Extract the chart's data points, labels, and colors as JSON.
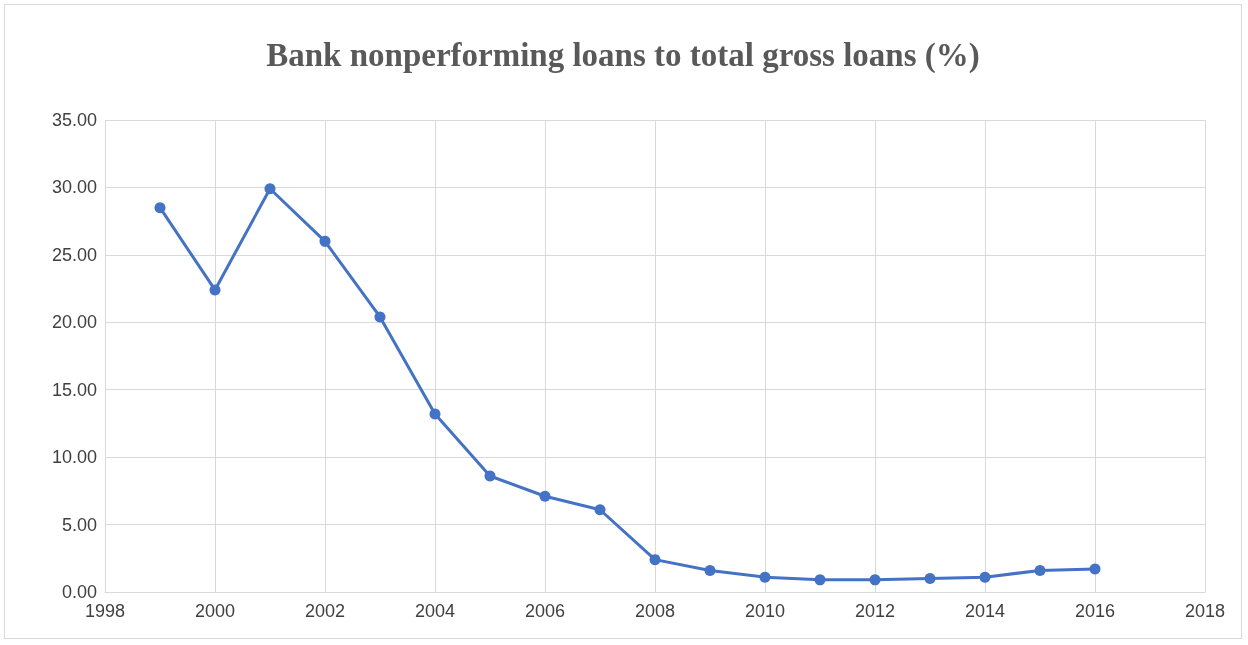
{
  "chart_data": {
    "type": "line",
    "title": "Bank nonperforming loans to total gross loans (%)",
    "x": [
      1999,
      2000,
      2001,
      2002,
      2003,
      2004,
      2005,
      2006,
      2007,
      2008,
      2009,
      2010,
      2011,
      2012,
      2013,
      2014,
      2015,
      2016
    ],
    "series": [
      {
        "color": "#4472c4",
        "values": [
          28.5,
          22.4,
          29.9,
          26.0,
          20.4,
          13.2,
          8.6,
          7.1,
          6.1,
          2.4,
          1.6,
          1.1,
          0.9,
          0.9,
          1.0,
          1.1,
          1.6,
          1.7
        ]
      }
    ],
    "xlim": [
      1998,
      2018
    ],
    "xticks": [
      1998,
      2000,
      2002,
      2004,
      2006,
      2008,
      2010,
      2012,
      2014,
      2016,
      2018
    ],
    "ylim": [
      0,
      35
    ],
    "yticks": [
      {
        "value": 0,
        "label": "0.00"
      },
      {
        "value": 5,
        "label": "5.00"
      },
      {
        "value": 10,
        "label": "10.00"
      },
      {
        "value": 15,
        "label": "15.00"
      },
      {
        "value": 20,
        "label": "20.00"
      },
      {
        "value": 25,
        "label": "25.00"
      },
      {
        "value": 30,
        "label": "30.00"
      },
      {
        "value": 35,
        "label": "35.00"
      }
    ],
    "grid": true,
    "marker": "circle",
    "line_style": "solid"
  }
}
